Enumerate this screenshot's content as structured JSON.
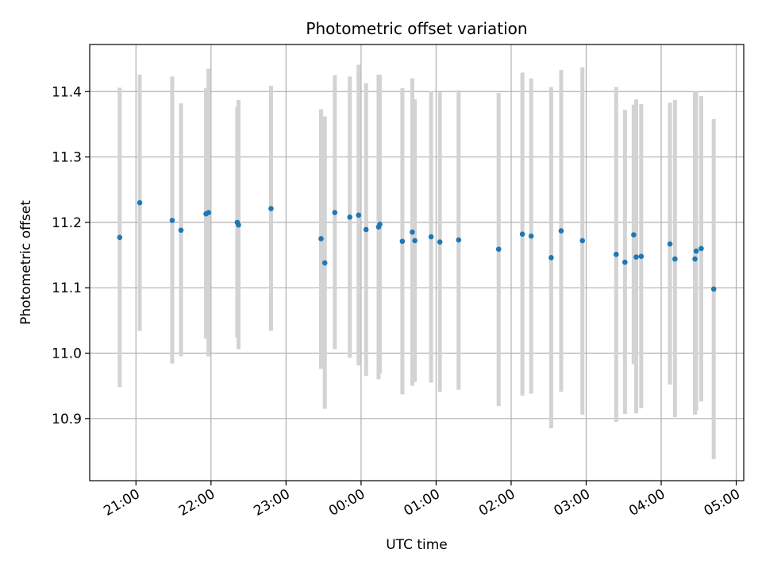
{
  "chart_data": {
    "type": "scatter",
    "title": "Photometric offset variation",
    "xlabel": "UTC time",
    "ylabel": "Photometric offset",
    "x_unit": "UTC time (HH:MM)",
    "xlim": [
      "20:23",
      "05:06"
    ],
    "ylim": [
      10.805,
      11.472
    ],
    "grid": true,
    "colors": {
      "point": "#1f77b4",
      "errorbar": "#d3d3d3",
      "grid": "#b0b0b0"
    },
    "xticks": [
      {
        "value": "21:00",
        "label": "21:00"
      },
      {
        "value": "22:00",
        "label": "22:00"
      },
      {
        "value": "23:00",
        "label": "23:00"
      },
      {
        "value": "00:00",
        "label": "00:00"
      },
      {
        "value": "01:00",
        "label": "01:00"
      },
      {
        "value": "02:00",
        "label": "02:00"
      },
      {
        "value": "03:00",
        "label": "03:00"
      },
      {
        "value": "04:00",
        "label": "04:00"
      },
      {
        "value": "05:00",
        "label": "05:00"
      }
    ],
    "yticks": [
      {
        "value": 10.9,
        "label": "10.9"
      },
      {
        "value": 11.0,
        "label": "11.0"
      },
      {
        "value": 11.1,
        "label": "11.1"
      },
      {
        "value": 11.2,
        "label": "11.2"
      },
      {
        "value": 11.3,
        "label": "11.3"
      },
      {
        "value": 11.4,
        "label": "11.4"
      }
    ],
    "points": [
      {
        "x": "20:47",
        "y": 11.177,
        "ylow": 10.948,
        "yhigh": 11.406
      },
      {
        "x": "21:03",
        "y": 11.23,
        "ylow": 11.034,
        "yhigh": 11.426
      },
      {
        "x": "21:29",
        "y": 11.203,
        "ylow": 10.984,
        "yhigh": 11.423
      },
      {
        "x": "21:36",
        "y": 11.188,
        "ylow": 10.995,
        "yhigh": 11.382
      },
      {
        "x": "21:56",
        "y": 11.213,
        "ylow": 11.022,
        "yhigh": 11.405
      },
      {
        "x": "21:58",
        "y": 11.215,
        "ylow": 10.995,
        "yhigh": 11.435
      },
      {
        "x": "22:21",
        "y": 11.2,
        "ylow": 11.024,
        "yhigh": 11.377
      },
      {
        "x": "22:22",
        "y": 11.196,
        "ylow": 11.006,
        "yhigh": 11.387
      },
      {
        "x": "22:48",
        "y": 11.221,
        "ylow": 11.034,
        "yhigh": 11.409
      },
      {
        "x": "23:28",
        "y": 11.175,
        "ylow": 10.976,
        "yhigh": 11.373
      },
      {
        "x": "23:31",
        "y": 11.138,
        "ylow": 10.915,
        "yhigh": 11.362
      },
      {
        "x": "23:39",
        "y": 11.215,
        "ylow": 11.006,
        "yhigh": 11.425
      },
      {
        "x": "23:51",
        "y": 11.208,
        "ylow": 10.993,
        "yhigh": 11.423
      },
      {
        "x": "23:58",
        "y": 11.211,
        "ylow": 10.981,
        "yhigh": 11.441
      },
      {
        "x": "00:04",
        "y": 11.189,
        "ylow": 10.965,
        "yhigh": 11.413
      },
      {
        "x": "00:14",
        "y": 11.193,
        "ylow": 10.96,
        "yhigh": 11.426
      },
      {
        "x": "00:15",
        "y": 11.197,
        "ylow": 10.969,
        "yhigh": 11.425
      },
      {
        "x": "00:33",
        "y": 11.171,
        "ylow": 10.937,
        "yhigh": 11.405
      },
      {
        "x": "00:41",
        "y": 11.185,
        "ylow": 10.95,
        "yhigh": 11.42
      },
      {
        "x": "00:43",
        "y": 11.172,
        "ylow": 10.956,
        "yhigh": 11.388
      },
      {
        "x": "00:56",
        "y": 11.178,
        "ylow": 10.955,
        "yhigh": 11.401
      },
      {
        "x": "01:03",
        "y": 11.17,
        "ylow": 10.941,
        "yhigh": 11.399
      },
      {
        "x": "01:18",
        "y": 11.173,
        "ylow": 10.944,
        "yhigh": 11.402
      },
      {
        "x": "01:50",
        "y": 11.159,
        "ylow": 10.919,
        "yhigh": 11.398
      },
      {
        "x": "02:09",
        "y": 11.182,
        "ylow": 10.935,
        "yhigh": 11.429
      },
      {
        "x": "02:16",
        "y": 11.179,
        "ylow": 10.938,
        "yhigh": 11.42
      },
      {
        "x": "02:32",
        "y": 11.146,
        "ylow": 10.885,
        "yhigh": 11.407
      },
      {
        "x": "02:40",
        "y": 11.187,
        "ylow": 10.941,
        "yhigh": 11.433
      },
      {
        "x": "02:57",
        "y": 11.172,
        "ylow": 10.906,
        "yhigh": 11.437
      },
      {
        "x": "03:24",
        "y": 11.151,
        "ylow": 10.895,
        "yhigh": 11.407
      },
      {
        "x": "03:31",
        "y": 11.139,
        "ylow": 10.907,
        "yhigh": 11.372
      },
      {
        "x": "03:38",
        "y": 11.181,
        "ylow": 10.983,
        "yhigh": 11.38
      },
      {
        "x": "03:40",
        "y": 11.147,
        "ylow": 10.908,
        "yhigh": 11.388
      },
      {
        "x": "03:44",
        "y": 11.148,
        "ylow": 10.916,
        "yhigh": 11.381
      },
      {
        "x": "04:07",
        "y": 11.167,
        "ylow": 10.952,
        "yhigh": 11.383
      },
      {
        "x": "04:11",
        "y": 11.144,
        "ylow": 10.902,
        "yhigh": 11.387
      },
      {
        "x": "04:27",
        "y": 11.144,
        "ylow": 10.906,
        "yhigh": 11.4
      },
      {
        "x": "04:28",
        "y": 11.156,
        "ylow": 10.912,
        "yhigh": 11.4
      },
      {
        "x": "04:32",
        "y": 11.16,
        "ylow": 10.926,
        "yhigh": 11.393
      },
      {
        "x": "04:42",
        "y": 11.098,
        "ylow": 10.838,
        "yhigh": 11.358
      }
    ]
  }
}
